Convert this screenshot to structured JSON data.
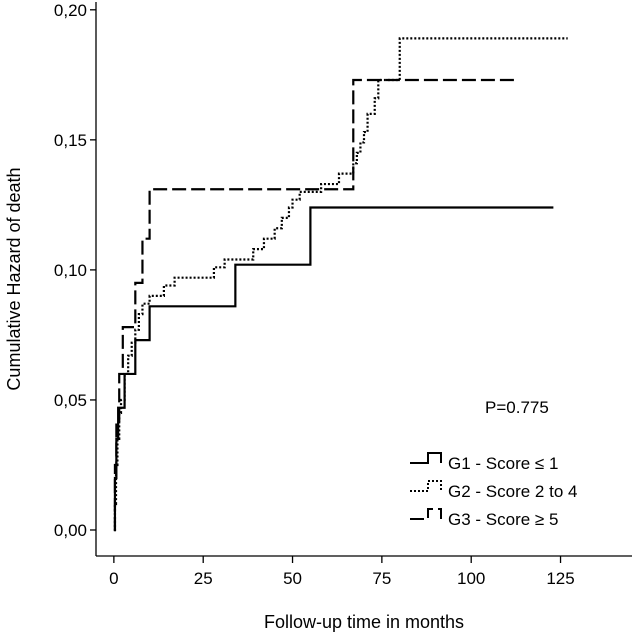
{
  "chart_data": {
    "type": "line",
    "step": true,
    "xlabel": "Follow-up time in months",
    "ylabel": "Cumulative Hazard of death",
    "xlim": [
      -5,
      145
    ],
    "ylim": [
      -0.01,
      0.203
    ],
    "x_ticks": [
      0,
      25,
      50,
      75,
      100,
      125
    ],
    "x_tick_labels": [
      "0",
      "25",
      "50",
      "75",
      "100",
      "125"
    ],
    "y_ticks": [
      0.0,
      0.05,
      0.1,
      0.15,
      0.2
    ],
    "y_tick_labels": [
      "0,00",
      "0,05",
      "0,10",
      "0,15",
      "0,20"
    ],
    "annotation": "P=0.775",
    "legend_position": "bottom-right",
    "series": [
      {
        "name": "G1 - Score ≤ 1",
        "style": "solid",
        "points": [
          [
            0,
            0
          ],
          [
            0.3,
            0.02
          ],
          [
            0.7,
            0.035
          ],
          [
            1.2,
            0.047
          ],
          [
            3,
            0.06
          ],
          [
            6,
            0.073
          ],
          [
            10,
            0.086
          ],
          [
            34,
            0.102
          ],
          [
            55,
            0.124
          ],
          [
            123,
            0.124
          ]
        ]
      },
      {
        "name": "G2 - Score 2 to 4",
        "style": "dotted",
        "points": [
          [
            0,
            0
          ],
          [
            0.3,
            0.01
          ],
          [
            0.6,
            0.025
          ],
          [
            1,
            0.035
          ],
          [
            1.5,
            0.045
          ],
          [
            2,
            0.05
          ],
          [
            3,
            0.06
          ],
          [
            4,
            0.067
          ],
          [
            5,
            0.072
          ],
          [
            6,
            0.077
          ],
          [
            7,
            0.083
          ],
          [
            8,
            0.087
          ],
          [
            10,
            0.09
          ],
          [
            14,
            0.094
          ],
          [
            17,
            0.097
          ],
          [
            25,
            0.097
          ],
          [
            28,
            0.101
          ],
          [
            31,
            0.104
          ],
          [
            37,
            0.104
          ],
          [
            39,
            0.108
          ],
          [
            42,
            0.112
          ],
          [
            45,
            0.116
          ],
          [
            47,
            0.12
          ],
          [
            49,
            0.124
          ],
          [
            50,
            0.127
          ],
          [
            52,
            0.13
          ],
          [
            55,
            0.13
          ],
          [
            58,
            0.133
          ],
          [
            63,
            0.137
          ],
          [
            66,
            0.137
          ],
          [
            67,
            0.141
          ],
          [
            68,
            0.145
          ],
          [
            69,
            0.149
          ],
          [
            70,
            0.153
          ],
          [
            71,
            0.16
          ],
          [
            73,
            0.166
          ],
          [
            74,
            0.173
          ],
          [
            80,
            0.189
          ],
          [
            127,
            0.189
          ]
        ]
      },
      {
        "name": "G3 - Score ≥ 5",
        "style": "dashed",
        "points": [
          [
            0,
            0
          ],
          [
            0.3,
            0.025
          ],
          [
            0.7,
            0.042
          ],
          [
            1.5,
            0.06
          ],
          [
            2.5,
            0.078
          ],
          [
            6,
            0.095
          ],
          [
            8,
            0.112
          ],
          [
            10,
            0.131
          ],
          [
            66,
            0.131
          ],
          [
            67,
            0.173
          ],
          [
            113,
            0.173
          ]
        ]
      }
    ]
  }
}
